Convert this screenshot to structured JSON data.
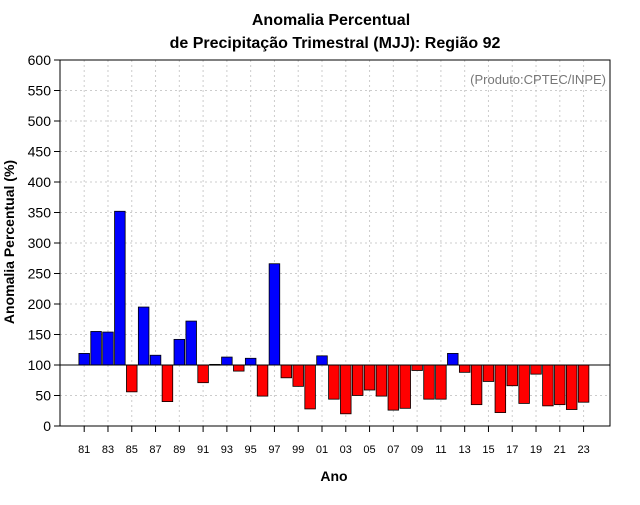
{
  "chart_data": {
    "type": "bar",
    "title_line1": "Anomalia Percentual",
    "title_line2": "de Precipitação Trimestral (MJJ): Região 92",
    "xlabel": "Ano",
    "ylabel": "Anomalia Percentual (%)",
    "credit": "(Produto:CPTEC/INPE)",
    "ylim": [
      0,
      600
    ],
    "yticks": [
      0,
      50,
      100,
      150,
      200,
      250,
      300,
      350,
      400,
      450,
      500,
      550,
      600
    ],
    "baseline": 100,
    "grid": true,
    "colors": {
      "above": "#0000ff",
      "below": "#ff0000",
      "edge": "#000000",
      "grid": "#cccccc"
    },
    "categories": [
      "81",
      "82",
      "83",
      "84",
      "85",
      "86",
      "87",
      "88",
      "89",
      "90",
      "91",
      "92",
      "93",
      "94",
      "95",
      "96",
      "97",
      "98",
      "99",
      "00",
      "01",
      "02",
      "03",
      "04",
      "05",
      "06",
      "07",
      "08",
      "09",
      "10",
      "11",
      "12",
      "13",
      "14",
      "15",
      "16",
      "17",
      "18",
      "19",
      "20",
      "21",
      "22",
      "23"
    ],
    "x_tick_labels": [
      "81",
      "83",
      "85",
      "87",
      "89",
      "91",
      "93",
      "95",
      "97",
      "99",
      "01",
      "03",
      "05",
      "07",
      "09",
      "11",
      "13",
      "15",
      "17",
      "19",
      "21",
      "23"
    ],
    "values": [
      119,
      155,
      154,
      352,
      56,
      195,
      116,
      40,
      142,
      172,
      71,
      101,
      113,
      90,
      111,
      49,
      266,
      79,
      65,
      28,
      115,
      44,
      20,
      50,
      59,
      49,
      26,
      29,
      91,
      44,
      44,
      119,
      88,
      35,
      73,
      22,
      66,
      37,
      85,
      33,
      35,
      27,
      39
    ]
  }
}
